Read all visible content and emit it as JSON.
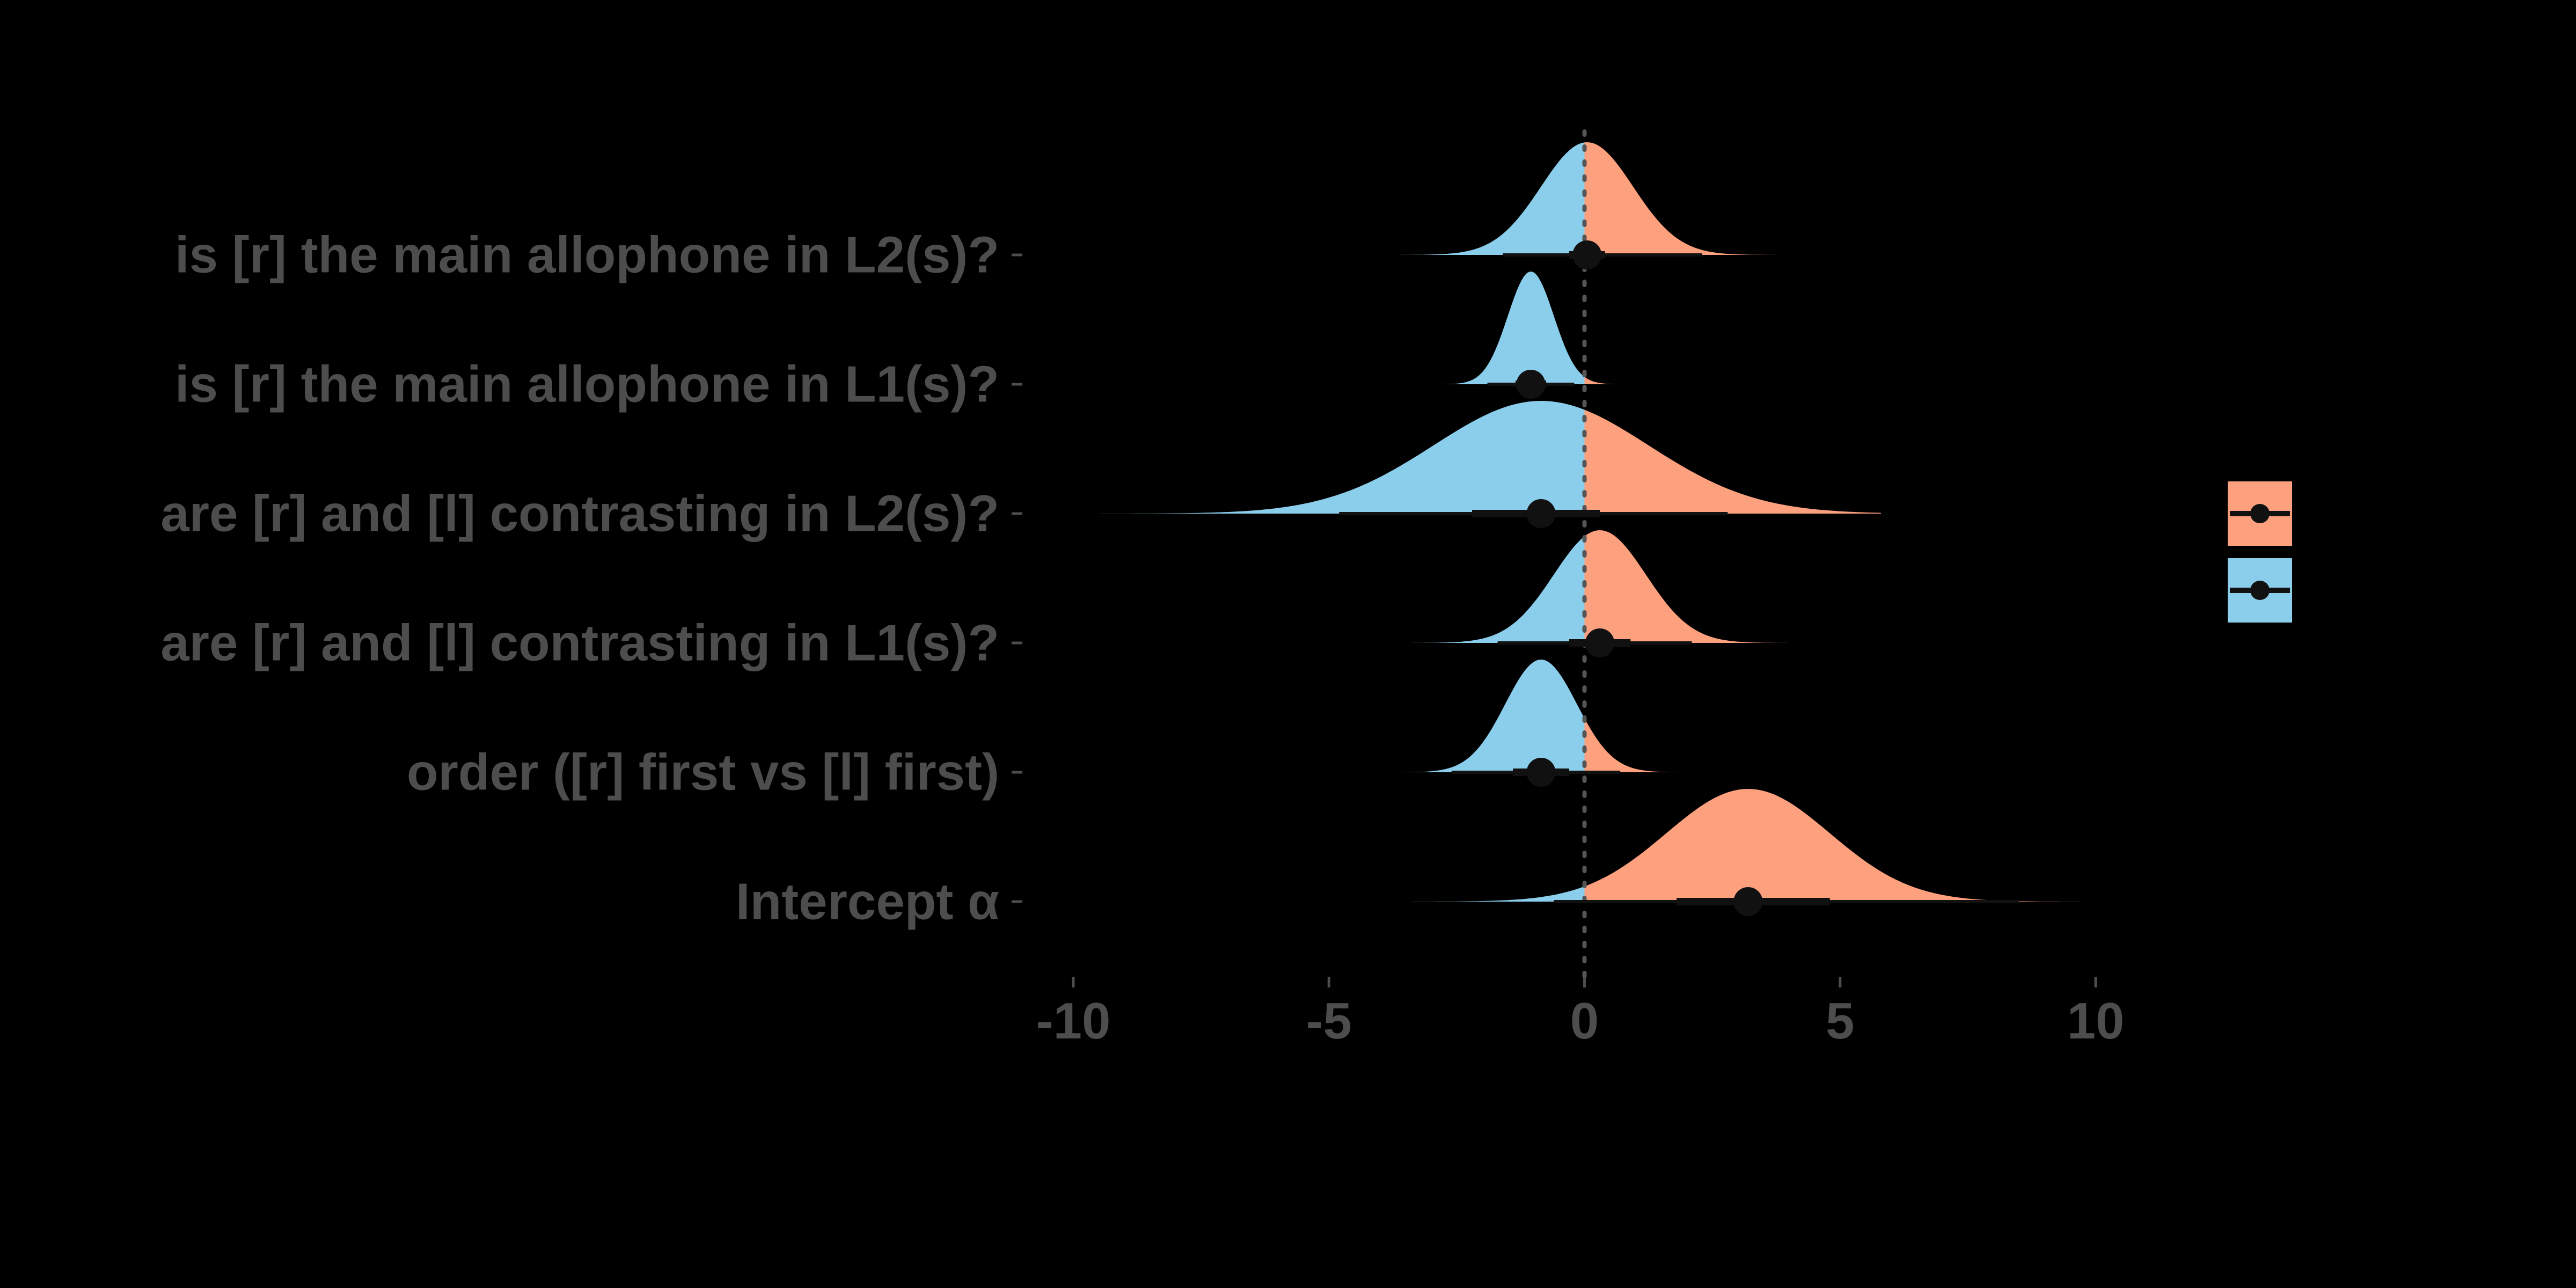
{
  "chart_data": {
    "type": "halfeye",
    "title": "",
    "xlabel": "",
    "ylabel": "",
    "xlim": [
      -10,
      10
    ],
    "xticks": [
      -10,
      -5,
      0,
      5,
      10
    ],
    "xtick_labels": [
      "-10",
      "-5",
      "0",
      "5",
      "10"
    ],
    "reference_line_x": 0,
    "grid": false,
    "legend_position": "right",
    "colors": {
      "background": "#000000",
      "positive": "#FDA07E",
      "negative": "#8ACEEC",
      "text": "#4d4d4d",
      "reference_line": "#555555",
      "interval": "#111111"
    },
    "legend_entries": [
      {
        "fill": "#FDA07E"
      },
      {
        "fill": "#8ACEEC"
      }
    ],
    "parameters": [
      {
        "label": "is [r] the main allophone in L2(s)?",
        "median": 0.05,
        "sd": 0.9,
        "min": -4.7,
        "max": 5.8,
        "ci66": [
          -0.3,
          0.4
        ],
        "ci95": [
          -1.6,
          2.3
        ]
      },
      {
        "label": "is [r] the main allophone in L1(s)?",
        "median": -1.05,
        "sd": 0.45,
        "min": -2.8,
        "max": 0.6,
        "ci66": [
          -1.35,
          -0.75
        ],
        "ci95": [
          -1.9,
          -0.2
        ]
      },
      {
        "label": "are [r] and [l] contrasting in L2(s)?",
        "median": -0.85,
        "sd": 2.1,
        "min": -10.0,
        "max": 5.8,
        "ci66": [
          -2.2,
          0.3
        ],
        "ci95": [
          -4.8,
          2.8
        ]
      },
      {
        "label": "are [r] and [l] contrasting in L1(s)?",
        "median": 0.3,
        "sd": 0.9,
        "min": -4.6,
        "max": 4.7,
        "ci66": [
          -0.3,
          0.9
        ],
        "ci95": [
          -1.7,
          2.1
        ]
      },
      {
        "label": "order ([r] first vs [l] first)",
        "median": -0.85,
        "sd": 0.7,
        "min": -5.2,
        "max": 3.3,
        "ci66": [
          -1.4,
          -0.3
        ],
        "ci95": [
          -2.6,
          0.7
        ]
      },
      {
        "label": "Intercept α",
        "median": 3.2,
        "sd": 1.6,
        "min": -3.9,
        "max": 10.0,
        "ci66": [
          1.8,
          4.8
        ],
        "ci95": [
          -0.6,
          8.5
        ]
      }
    ]
  }
}
